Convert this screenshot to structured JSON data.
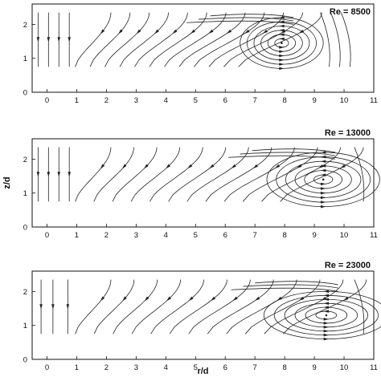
{
  "chart_data": [
    {
      "type": "streamline",
      "annotation": "Re = 8500",
      "xlim": [
        -0.5,
        11
      ],
      "ylim": [
        0,
        2.6
      ],
      "xticks": [
        0,
        1,
        2,
        3,
        4,
        5,
        6,
        7,
        8,
        9,
        10,
        11
      ],
      "yticks": [
        0,
        1,
        2
      ],
      "xlabel": "",
      "ylabel": "",
      "vortex_center": [
        7.9,
        1.45
      ],
      "vortex_radius": [
        1.4,
        0.75
      ],
      "inlet_lines_x": [
        -0.3,
        0.05,
        0.4,
        0.75
      ]
    },
    {
      "type": "streamline",
      "annotation": "Re = 13000",
      "xlim": [
        -0.5,
        11
      ],
      "ylim": [
        0,
        2.6
      ],
      "xticks": [
        0,
        1,
        2,
        3,
        4,
        5,
        6,
        7,
        8,
        9,
        10,
        11
      ],
      "yticks": [
        0,
        1,
        2
      ],
      "xlabel": "",
      "ylabel": "z/d",
      "vortex_center": [
        9.3,
        1.4
      ],
      "vortex_radius": [
        1.9,
        0.8
      ],
      "inlet_lines_x": [
        -0.3,
        0.05,
        0.4,
        0.75
      ]
    },
    {
      "type": "streamline",
      "annotation": "Re = 23000",
      "xlim": [
        -0.5,
        11
      ],
      "ylim": [
        0,
        2.6
      ],
      "xticks": [
        0,
        1,
        2,
        3,
        4,
        5,
        6,
        7,
        8,
        9,
        10,
        11
      ],
      "yticks": [
        0,
        1,
        2
      ],
      "xlabel": "r/d",
      "ylabel": "",
      "vortex_center": [
        9.4,
        1.3
      ],
      "vortex_radius": [
        2.1,
        0.7
      ],
      "inlet_lines_x": [
        -0.2,
        0.2,
        0.7
      ]
    }
  ]
}
